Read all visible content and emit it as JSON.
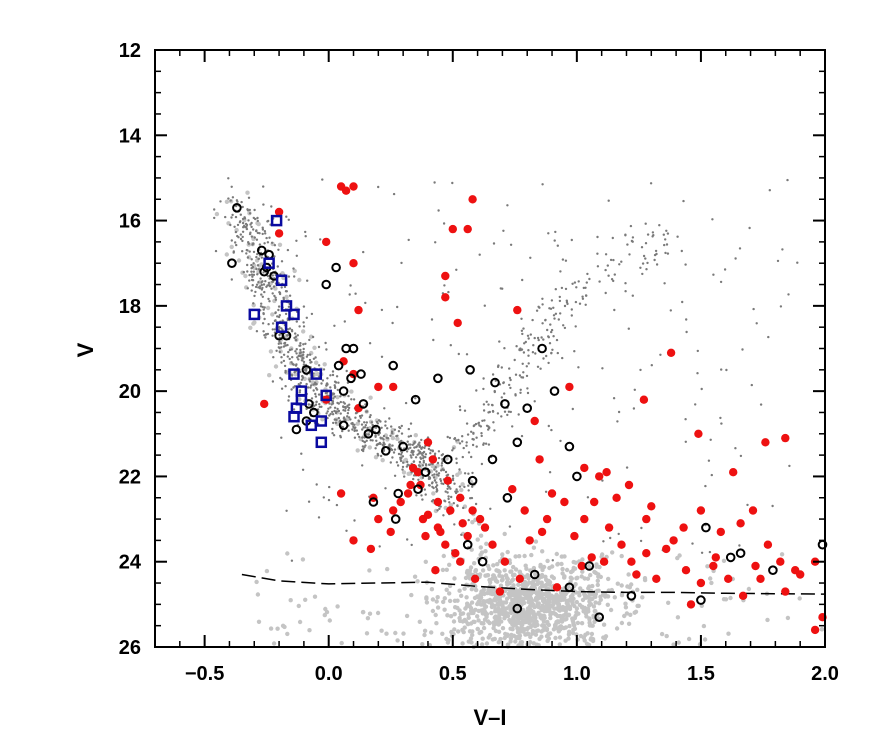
{
  "chart_data": {
    "type": "scatter",
    "title": "",
    "xlabel": "V–I",
    "ylabel": "V",
    "xlim": [
      -0.7,
      2.0
    ],
    "ylim": [
      26,
      12
    ],
    "y_inverted": true,
    "x_ticks": [
      {
        "value": -0.5,
        "label": "−0.5"
      },
      {
        "value": 0.0,
        "label": "0.0"
      },
      {
        "value": 0.5,
        "label": "0.5"
      },
      {
        "value": 1.0,
        "label": "1.0"
      },
      {
        "value": 1.5,
        "label": "1.5"
      },
      {
        "value": 2.0,
        "label": "2.0"
      }
    ],
    "y_ticks": [
      {
        "value": 12,
        "label": "12"
      },
      {
        "value": 14,
        "label": "14"
      },
      {
        "value": 16,
        "label": "16"
      },
      {
        "value": 18,
        "label": "18"
      },
      {
        "value": 20,
        "label": "20"
      },
      {
        "value": 22,
        "label": "22"
      },
      {
        "value": 24,
        "label": "24"
      },
      {
        "value": 26,
        "label": "26"
      }
    ],
    "grid": false,
    "legend": "none",
    "colors": {
      "red": "#ee1111",
      "blue_square": "#0a0aa0",
      "black_ring": "#000000",
      "field_dark": "#7a7a7a",
      "field_light": "#c4c4c4",
      "limit_line": "#000000"
    },
    "field_stars": {
      "description_note": "",
      "dark_count": 1400,
      "light_count": 1300
    },
    "series": [
      {
        "marker": "filled-circle-red",
        "points": [
          [
            -0.2,
            15.8
          ],
          [
            -0.2,
            16.3
          ],
          [
            0.05,
            15.2
          ],
          [
            0.07,
            15.3
          ],
          [
            0.1,
            15.2
          ],
          [
            0.58,
            15.5
          ],
          [
            -0.01,
            16.5
          ],
          [
            0.1,
            17.0
          ],
          [
            0.5,
            16.2
          ],
          [
            0.56,
            16.2
          ],
          [
            0.47,
            17.3
          ],
          [
            0.47,
            17.8
          ],
          [
            0.52,
            18.4
          ],
          [
            0.12,
            18.1
          ],
          [
            0.76,
            18.1
          ],
          [
            1.38,
            19.1
          ],
          [
            0.06,
            19.3
          ],
          [
            0.1,
            19.6
          ],
          [
            0.2,
            19.9
          ],
          [
            0.97,
            19.9
          ],
          [
            0.26,
            19.9
          ],
          [
            0.12,
            20.4
          ],
          [
            -0.01,
            20.2
          ],
          [
            -0.26,
            20.3
          ],
          [
            1.27,
            20.2
          ],
          [
            0.83,
            20.7
          ],
          [
            1.49,
            21.0
          ],
          [
            1.76,
            21.2
          ],
          [
            1.84,
            21.1
          ],
          [
            1.63,
            21.9
          ],
          [
            1.03,
            21.8
          ],
          [
            1.09,
            22.0
          ],
          [
            0.85,
            21.6
          ],
          [
            0.4,
            21.2
          ],
          [
            0.42,
            21.6
          ],
          [
            0.34,
            21.8
          ],
          [
            0.33,
            22.2
          ],
          [
            0.29,
            22.6
          ],
          [
            0.2,
            23.0
          ],
          [
            0.26,
            22.8
          ],
          [
            0.18,
            22.5
          ],
          [
            0.05,
            22.4
          ],
          [
            0.1,
            23.5
          ],
          [
            0.17,
            23.7
          ],
          [
            0.25,
            23.3
          ],
          [
            0.37,
            22.2
          ],
          [
            0.44,
            22.6
          ],
          [
            0.53,
            22.5
          ],
          [
            0.38,
            23.0
          ],
          [
            0.44,
            23.2
          ],
          [
            0.47,
            23.6
          ],
          [
            0.51,
            23.8
          ],
          [
            0.56,
            23.4
          ],
          [
            0.61,
            23.0
          ],
          [
            0.66,
            23.6
          ],
          [
            0.71,
            24.0
          ],
          [
            0.77,
            24.4
          ],
          [
            0.81,
            23.5
          ],
          [
            0.88,
            23.0
          ],
          [
            0.95,
            22.6
          ],
          [
            0.99,
            23.4
          ],
          [
            1.02,
            24.1
          ],
          [
            1.07,
            22.6
          ],
          [
            1.13,
            23.2
          ],
          [
            1.18,
            23.6
          ],
          [
            1.22,
            24.0
          ],
          [
            1.28,
            23.8
          ],
          [
            1.32,
            24.4
          ],
          [
            1.39,
            23.5
          ],
          [
            1.44,
            24.2
          ],
          [
            1.5,
            24.5
          ],
          [
            1.56,
            23.9
          ],
          [
            1.61,
            24.4
          ],
          [
            1.67,
            24.8
          ],
          [
            1.72,
            24.1
          ],
          [
            1.77,
            23.6
          ],
          [
            1.84,
            24.7
          ],
          [
            1.9,
            24.3
          ],
          [
            1.96,
            24.0
          ],
          [
            1.99,
            25.3
          ],
          [
            1.96,
            25.6
          ],
          [
            1.46,
            25.0
          ],
          [
            1.28,
            23.0
          ],
          [
            1.16,
            22.5
          ],
          [
            1.06,
            23.9
          ],
          [
            0.92,
            24.6
          ],
          [
            0.69,
            24.7
          ],
          [
            0.59,
            24.4
          ],
          [
            0.43,
            24.2
          ],
          [
            0.53,
            24.0
          ],
          [
            0.32,
            22.4
          ],
          [
            0.36,
            21.9
          ],
          [
            0.49,
            22.8
          ],
          [
            0.45,
            23.3
          ],
          [
            0.4,
            22.9
          ],
          [
            0.54,
            23.1
          ],
          [
            0.39,
            23.4
          ],
          [
            0.48,
            22.1
          ],
          [
            0.58,
            22.8
          ],
          [
            0.63,
            23.2
          ],
          [
            1.5,
            22.8
          ],
          [
            1.43,
            23.2
          ],
          [
            1.36,
            23.7
          ],
          [
            1.24,
            24.3
          ],
          [
            1.11,
            24.0
          ],
          [
            1.03,
            23.0
          ],
          [
            0.9,
            22.4
          ],
          [
            0.86,
            23.3
          ],
          [
            0.79,
            22.8
          ],
          [
            0.74,
            22.3
          ],
          [
            1.66,
            23.1
          ],
          [
            1.71,
            22.8
          ],
          [
            1.58,
            23.3
          ],
          [
            1.55,
            24.1
          ],
          [
            1.82,
            24.0
          ],
          [
            1.88,
            24.2
          ],
          [
            1.74,
            24.4
          ],
          [
            1.3,
            22.7
          ],
          [
            1.21,
            22.2
          ],
          [
            1.12,
            21.9
          ]
        ]
      },
      {
        "marker": "open-circle-black",
        "points": [
          [
            -0.37,
            15.7
          ],
          [
            -0.39,
            17.0
          ],
          [
            -0.27,
            16.7
          ],
          [
            -0.24,
            16.8
          ],
          [
            -0.26,
            17.2
          ],
          [
            -0.22,
            17.3
          ],
          [
            -0.25,
            17.1
          ],
          [
            0.03,
            17.1
          ],
          [
            -0.01,
            17.5
          ],
          [
            -0.2,
            18.7
          ],
          [
            -0.17,
            18.7
          ],
          [
            0.07,
            19.0
          ],
          [
            0.1,
            19.0
          ],
          [
            0.04,
            19.4
          ],
          [
            0.09,
            19.7
          ],
          [
            0.06,
            20.0
          ],
          [
            0.13,
            19.6
          ],
          [
            -0.09,
            19.5
          ],
          [
            -0.08,
            20.3
          ],
          [
            -0.06,
            20.5
          ],
          [
            -0.13,
            20.9
          ],
          [
            -0.09,
            20.7
          ],
          [
            0.06,
            20.8
          ],
          [
            0.14,
            20.3
          ],
          [
            0.19,
            20.9
          ],
          [
            0.26,
            19.4
          ],
          [
            0.35,
            20.2
          ],
          [
            0.44,
            19.7
          ],
          [
            0.57,
            19.5
          ],
          [
            0.67,
            19.8
          ],
          [
            0.71,
            20.3
          ],
          [
            0.86,
            19.0
          ],
          [
            0.91,
            20.0
          ],
          [
            0.8,
            20.4
          ],
          [
            0.97,
            21.3
          ],
          [
            1.0,
            22.0
          ],
          [
            0.76,
            21.2
          ],
          [
            0.66,
            21.6
          ],
          [
            0.72,
            22.5
          ],
          [
            0.48,
            21.6
          ],
          [
            0.58,
            22.1
          ],
          [
            0.36,
            22.3
          ],
          [
            0.28,
            22.4
          ],
          [
            0.18,
            22.6
          ],
          [
            0.27,
            23.0
          ],
          [
            0.56,
            23.6
          ],
          [
            0.62,
            24.0
          ],
          [
            0.83,
            24.3
          ],
          [
            0.97,
            24.6
          ],
          [
            1.05,
            24.1
          ],
          [
            1.22,
            24.8
          ],
          [
            1.5,
            24.9
          ],
          [
            1.52,
            23.2
          ],
          [
            1.62,
            23.9
          ],
          [
            1.66,
            23.8
          ],
          [
            1.79,
            24.2
          ],
          [
            1.99,
            23.6
          ],
          [
            0.76,
            25.1
          ],
          [
            1.09,
            25.3
          ],
          [
            0.23,
            21.4
          ],
          [
            0.16,
            21.0
          ],
          [
            0.3,
            21.3
          ],
          [
            0.39,
            21.9
          ]
        ]
      },
      {
        "marker": "open-square-blue",
        "points": [
          [
            -0.21,
            16.0
          ],
          [
            -0.24,
            17.0
          ],
          [
            -0.19,
            17.4
          ],
          [
            -0.17,
            18.0
          ],
          [
            -0.14,
            18.2
          ],
          [
            -0.19,
            18.5
          ],
          [
            -0.3,
            18.2
          ],
          [
            -0.14,
            19.6
          ],
          [
            -0.05,
            19.6
          ],
          [
            -0.11,
            20.0
          ],
          [
            -0.13,
            20.4
          ],
          [
            -0.14,
            20.6
          ],
          [
            -0.07,
            20.8
          ],
          [
            -0.03,
            20.7
          ],
          [
            -0.03,
            21.2
          ],
          [
            -0.11,
            20.2
          ],
          [
            -0.01,
            20.1
          ]
        ]
      }
    ],
    "completeness_limit": {
      "style": "dashed",
      "x": [
        -0.35,
        -0.2,
        0.0,
        0.2,
        0.4,
        0.6,
        0.8,
        1.0,
        1.2,
        1.4,
        1.6,
        1.8,
        2.0
      ],
      "y": [
        24.3,
        24.45,
        24.52,
        24.5,
        24.48,
        24.58,
        24.65,
        24.7,
        24.72,
        24.72,
        24.74,
        24.75,
        24.76
      ]
    }
  }
}
